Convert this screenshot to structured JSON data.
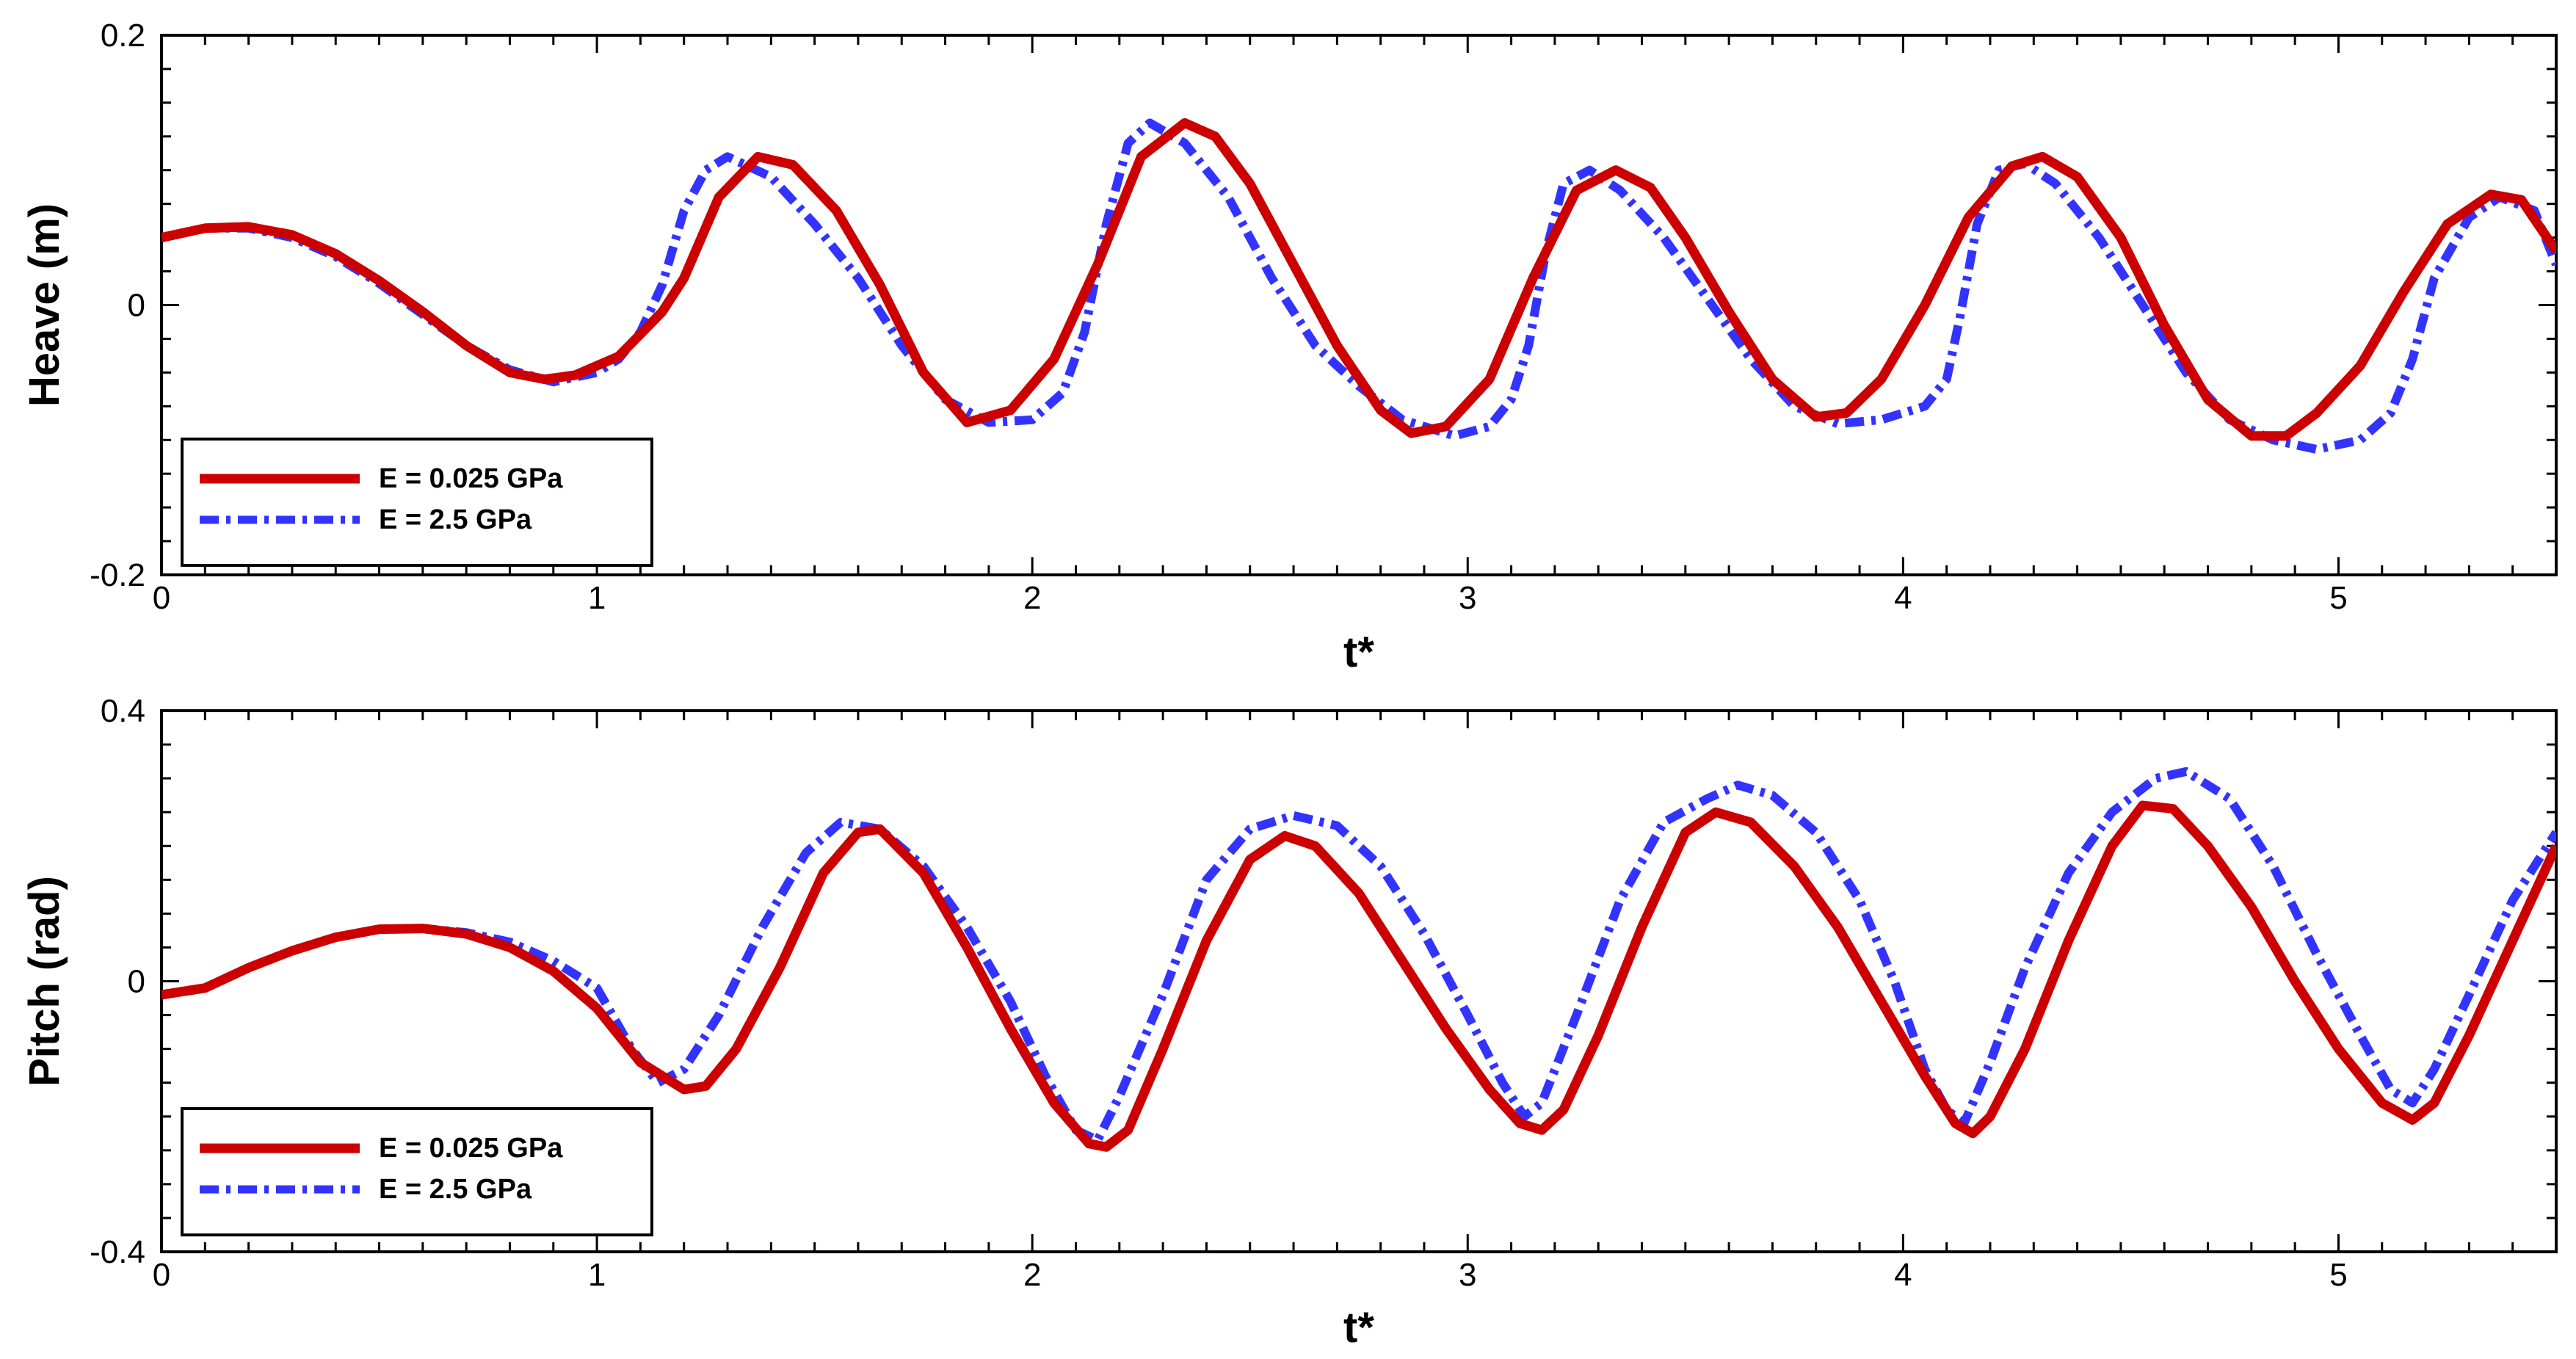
{
  "chart_data": [
    {
      "type": "line",
      "title": "",
      "xlabel": "t*",
      "ylabel": "Heave (m)",
      "xlim": [
        0,
        5.5
      ],
      "ylim": [
        -0.2,
        0.2
      ],
      "x_ticks": [
        "0",
        "1",
        "2",
        "3",
        "4",
        "5"
      ],
      "y_ticks": [
        "0.2",
        "0",
        "-0.2"
      ],
      "grid": false,
      "legend_position": "bottom-left",
      "series": [
        {
          "name": "E = 0.025 GPa",
          "color": "#cc0000",
          "style": "solid",
          "points": [
            [
              0,
              0.05
            ],
            [
              0.1,
              0.057
            ],
            [
              0.2,
              0.058
            ],
            [
              0.3,
              0.052
            ],
            [
              0.4,
              0.038
            ],
            [
              0.5,
              0.018
            ],
            [
              0.6,
              -0.005
            ],
            [
              0.7,
              -0.03
            ],
            [
              0.8,
              -0.05
            ],
            [
              0.88,
              -0.055
            ],
            [
              0.95,
              -0.052
            ],
            [
              1.05,
              -0.038
            ],
            [
              1.15,
              -0.005
            ],
            [
              1.2,
              0.02
            ],
            [
              1.28,
              0.08
            ],
            [
              1.37,
              0.11
            ],
            [
              1.45,
              0.104
            ],
            [
              1.55,
              0.07
            ],
            [
              1.65,
              0.015
            ],
            [
              1.75,
              -0.05
            ],
            [
              1.85,
              -0.087
            ],
            [
              1.95,
              -0.078
            ],
            [
              2.05,
              -0.04
            ],
            [
              2.15,
              0.03
            ],
            [
              2.25,
              0.11
            ],
            [
              2.35,
              0.135
            ],
            [
              2.42,
              0.125
            ],
            [
              2.5,
              0.09
            ],
            [
              2.6,
              0.03
            ],
            [
              2.7,
              -0.03
            ],
            [
              2.8,
              -0.078
            ],
            [
              2.87,
              -0.095
            ],
            [
              2.95,
              -0.09
            ],
            [
              3.05,
              -0.055
            ],
            [
              3.15,
              0.02
            ],
            [
              3.25,
              0.085
            ],
            [
              3.34,
              0.1
            ],
            [
              3.42,
              0.087
            ],
            [
              3.5,
              0.05
            ],
            [
              3.6,
              -0.005
            ],
            [
              3.7,
              -0.055
            ],
            [
              3.8,
              -0.083
            ],
            [
              3.87,
              -0.08
            ],
            [
              3.95,
              -0.055
            ],
            [
              4.05,
              0.0
            ],
            [
              4.15,
              0.065
            ],
            [
              4.25,
              0.103
            ],
            [
              4.32,
              0.11
            ],
            [
              4.4,
              0.095
            ],
            [
              4.5,
              0.05
            ],
            [
              4.6,
              -0.015
            ],
            [
              4.7,
              -0.07
            ],
            [
              4.8,
              -0.097
            ],
            [
              4.88,
              -0.097
            ],
            [
              4.95,
              -0.08
            ],
            [
              5.05,
              -0.045
            ],
            [
              5.15,
              0.01
            ],
            [
              5.25,
              0.06
            ],
            [
              5.35,
              0.082
            ],
            [
              5.42,
              0.078
            ],
            [
              5.5,
              0.04
            ]
          ]
        },
        {
          "name": "E = 2.5 GPa",
          "color": "#3333ff",
          "style": "dash-dot",
          "points": [
            [
              0,
              0.05
            ],
            [
              0.1,
              0.057
            ],
            [
              0.2,
              0.057
            ],
            [
              0.3,
              0.05
            ],
            [
              0.4,
              0.036
            ],
            [
              0.5,
              0.016
            ],
            [
              0.6,
              -0.007
            ],
            [
              0.7,
              -0.03
            ],
            [
              0.8,
              -0.048
            ],
            [
              0.9,
              -0.057
            ],
            [
              1.0,
              -0.05
            ],
            [
              1.05,
              -0.04
            ],
            [
              1.1,
              -0.02
            ],
            [
              1.15,
              0.015
            ],
            [
              1.2,
              0.07
            ],
            [
              1.25,
              0.1
            ],
            [
              1.3,
              0.11
            ],
            [
              1.4,
              0.095
            ],
            [
              1.5,
              0.06
            ],
            [
              1.6,
              0.02
            ],
            [
              1.7,
              -0.03
            ],
            [
              1.8,
              -0.07
            ],
            [
              1.9,
              -0.087
            ],
            [
              2.0,
              -0.085
            ],
            [
              2.07,
              -0.065
            ],
            [
              2.12,
              -0.02
            ],
            [
              2.17,
              0.06
            ],
            [
              2.22,
              0.12
            ],
            [
              2.27,
              0.135
            ],
            [
              2.35,
              0.12
            ],
            [
              2.45,
              0.08
            ],
            [
              2.55,
              0.02
            ],
            [
              2.65,
              -0.03
            ],
            [
              2.75,
              -0.06
            ],
            [
              2.85,
              -0.085
            ],
            [
              2.97,
              -0.097
            ],
            [
              3.05,
              -0.09
            ],
            [
              3.1,
              -0.07
            ],
            [
              3.14,
              -0.03
            ],
            [
              3.18,
              0.04
            ],
            [
              3.22,
              0.09
            ],
            [
              3.28,
              0.1
            ],
            [
              3.35,
              0.085
            ],
            [
              3.45,
              0.05
            ],
            [
              3.55,
              0.005
            ],
            [
              3.65,
              -0.04
            ],
            [
              3.75,
              -0.075
            ],
            [
              3.85,
              -0.088
            ],
            [
              3.95,
              -0.085
            ],
            [
              4.05,
              -0.075
            ],
            [
              4.1,
              -0.055
            ],
            [
              4.13,
              -0.01
            ],
            [
              4.17,
              0.06
            ],
            [
              4.22,
              0.1
            ],
            [
              4.28,
              0.105
            ],
            [
              4.35,
              0.09
            ],
            [
              4.45,
              0.05
            ],
            [
              4.55,
              0.0
            ],
            [
              4.65,
              -0.05
            ],
            [
              4.75,
              -0.085
            ],
            [
              4.85,
              -0.1
            ],
            [
              4.95,
              -0.107
            ],
            [
              5.05,
              -0.1
            ],
            [
              5.12,
              -0.08
            ],
            [
              5.17,
              -0.04
            ],
            [
              5.22,
              0.02
            ],
            [
              5.3,
              0.065
            ],
            [
              5.37,
              0.08
            ],
            [
              5.45,
              0.07
            ],
            [
              5.5,
              0.03
            ]
          ]
        }
      ]
    },
    {
      "type": "line",
      "title": "",
      "xlabel": "t*",
      "ylabel": "Pitch (rad)",
      "xlim": [
        0,
        5.5
      ],
      "ylim": [
        -0.4,
        0.4
      ],
      "x_ticks": [
        "0",
        "1",
        "2",
        "3",
        "4",
        "5"
      ],
      "y_ticks": [
        "0.4",
        "0",
        "-0.4"
      ],
      "grid": false,
      "legend_position": "bottom-left",
      "series": [
        {
          "name": "E = 0.025 GPa",
          "color": "#cc0000",
          "style": "solid",
          "points": [
            [
              0,
              -0.02
            ],
            [
              0.1,
              -0.01
            ],
            [
              0.2,
              0.02
            ],
            [
              0.3,
              0.045
            ],
            [
              0.4,
              0.065
            ],
            [
              0.5,
              0.077
            ],
            [
              0.6,
              0.078
            ],
            [
              0.7,
              0.07
            ],
            [
              0.8,
              0.05
            ],
            [
              0.9,
              0.015
            ],
            [
              1.0,
              -0.04
            ],
            [
              1.1,
              -0.12
            ],
            [
              1.2,
              -0.16
            ],
            [
              1.25,
              -0.155
            ],
            [
              1.32,
              -0.1
            ],
            [
              1.42,
              0.02
            ],
            [
              1.52,
              0.16
            ],
            [
              1.6,
              0.22
            ],
            [
              1.65,
              0.225
            ],
            [
              1.75,
              0.16
            ],
            [
              1.85,
              0.05
            ],
            [
              1.95,
              -0.07
            ],
            [
              2.05,
              -0.18
            ],
            [
              2.13,
              -0.24
            ],
            [
              2.17,
              -0.245
            ],
            [
              2.22,
              -0.22
            ],
            [
              2.3,
              -0.1
            ],
            [
              2.4,
              0.06
            ],
            [
              2.5,
              0.18
            ],
            [
              2.58,
              0.215
            ],
            [
              2.65,
              0.2
            ],
            [
              2.75,
              0.13
            ],
            [
              2.85,
              0.03
            ],
            [
              2.95,
              -0.07
            ],
            [
              3.05,
              -0.16
            ],
            [
              3.12,
              -0.21
            ],
            [
              3.17,
              -0.22
            ],
            [
              3.22,
              -0.19
            ],
            [
              3.3,
              -0.08
            ],
            [
              3.4,
              0.08
            ],
            [
              3.5,
              0.22
            ],
            [
              3.57,
              0.25
            ],
            [
              3.65,
              0.235
            ],
            [
              3.75,
              0.17
            ],
            [
              3.85,
              0.08
            ],
            [
              3.95,
              -0.03
            ],
            [
              4.05,
              -0.14
            ],
            [
              4.12,
              -0.21
            ],
            [
              4.16,
              -0.225
            ],
            [
              4.2,
              -0.2
            ],
            [
              4.28,
              -0.1
            ],
            [
              4.38,
              0.06
            ],
            [
              4.48,
              0.2
            ],
            [
              4.55,
              0.26
            ],
            [
              4.62,
              0.255
            ],
            [
              4.7,
              0.2
            ],
            [
              4.8,
              0.11
            ],
            [
              4.9,
              0.0
            ],
            [
              5.0,
              -0.1
            ],
            [
              5.1,
              -0.18
            ],
            [
              5.17,
              -0.205
            ],
            [
              5.22,
              -0.18
            ],
            [
              5.3,
              -0.08
            ],
            [
              5.4,
              0.06
            ],
            [
              5.5,
              0.2
            ]
          ]
        },
        {
          "name": "E = 2.5 GPa",
          "color": "#3333ff",
          "style": "dash-dot",
          "points": [
            [
              0,
              -0.02
            ],
            [
              0.1,
              -0.01
            ],
            [
              0.2,
              0.02
            ],
            [
              0.3,
              0.045
            ],
            [
              0.4,
              0.065
            ],
            [
              0.5,
              0.077
            ],
            [
              0.6,
              0.078
            ],
            [
              0.7,
              0.072
            ],
            [
              0.8,
              0.058
            ],
            [
              0.9,
              0.03
            ],
            [
              1.0,
              -0.01
            ],
            [
              1.08,
              -0.1
            ],
            [
              1.14,
              -0.15
            ],
            [
              1.2,
              -0.13
            ],
            [
              1.28,
              -0.05
            ],
            [
              1.38,
              0.08
            ],
            [
              1.48,
              0.19
            ],
            [
              1.56,
              0.235
            ],
            [
              1.65,
              0.225
            ],
            [
              1.75,
              0.17
            ],
            [
              1.85,
              0.08
            ],
            [
              1.95,
              -0.03
            ],
            [
              2.03,
              -0.14
            ],
            [
              2.1,
              -0.22
            ],
            [
              2.15,
              -0.235
            ],
            [
              2.2,
              -0.17
            ],
            [
              2.3,
              -0.02
            ],
            [
              2.4,
              0.15
            ],
            [
              2.5,
              0.225
            ],
            [
              2.6,
              0.245
            ],
            [
              2.7,
              0.23
            ],
            [
              2.8,
              0.17
            ],
            [
              2.9,
              0.07
            ],
            [
              3.0,
              -0.05
            ],
            [
              3.08,
              -0.15
            ],
            [
              3.13,
              -0.2
            ],
            [
              3.17,
              -0.18
            ],
            [
              3.25,
              -0.05
            ],
            [
              3.35,
              0.12
            ],
            [
              3.45,
              0.235
            ],
            [
              3.55,
              0.27
            ],
            [
              3.62,
              0.29
            ],
            [
              3.7,
              0.275
            ],
            [
              3.8,
              0.22
            ],
            [
              3.9,
              0.12
            ],
            [
              3.98,
              0.0
            ],
            [
              4.05,
              -0.13
            ],
            [
              4.1,
              -0.19
            ],
            [
              4.14,
              -0.21
            ],
            [
              4.2,
              -0.12
            ],
            [
              4.28,
              0.02
            ],
            [
              4.38,
              0.16
            ],
            [
              4.48,
              0.25
            ],
            [
              4.58,
              0.3
            ],
            [
              4.65,
              0.31
            ],
            [
              4.75,
              0.27
            ],
            [
              4.85,
              0.17
            ],
            [
              4.95,
              0.04
            ],
            [
              5.05,
              -0.08
            ],
            [
              5.12,
              -0.16
            ],
            [
              5.17,
              -0.18
            ],
            [
              5.22,
              -0.13
            ],
            [
              5.3,
              -0.02
            ],
            [
              5.4,
              0.12
            ],
            [
              5.5,
              0.22
            ]
          ]
        }
      ]
    }
  ]
}
